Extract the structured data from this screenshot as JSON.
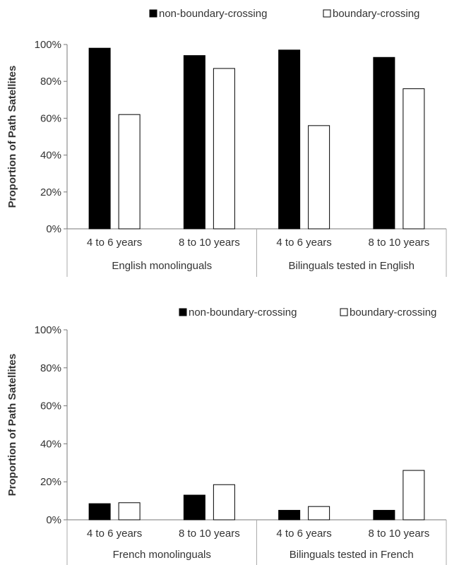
{
  "chart_data": [
    {
      "type": "bar",
      "ylabel": "Proportion of Path Satellites",
      "ylim": [
        0,
        100
      ],
      "yticks": [
        "0%",
        "20%",
        "40%",
        "60%",
        "80%",
        "100%"
      ],
      "groups": [
        "English monolinguals",
        "Bilinguals tested in English"
      ],
      "categories": [
        "4 to 6 years",
        "8 to 10 years",
        "4 to 6 years",
        "8 to 10 years"
      ],
      "legend_position": "top",
      "series": [
        {
          "name": "non-boundary-crossing",
          "color": "#000000",
          "values": [
            98,
            94,
            97,
            93
          ]
        },
        {
          "name": "boundary-crossing",
          "color": "#ffffff",
          "values": [
            62,
            87,
            56,
            76
          ]
        }
      ]
    },
    {
      "type": "bar",
      "ylabel": "Proportion of Path Satellites",
      "ylim": [
        0,
        100
      ],
      "yticks": [
        "0%",
        "20%",
        "40%",
        "60%",
        "80%",
        "100%"
      ],
      "groups": [
        "French monolinguals",
        "Bilinguals tested in French"
      ],
      "categories": [
        "4 to 6 years",
        "8 to 10 years",
        "4 to 6 years",
        "8 to 10 years"
      ],
      "legend_position": "top",
      "series": [
        {
          "name": "non-boundary-crossing",
          "color": "#000000",
          "values": [
            8.5,
            13,
            5,
            5
          ]
        },
        {
          "name": "boundary-crossing",
          "color": "#ffffff",
          "values": [
            9,
            18.5,
            7,
            26
          ]
        }
      ]
    }
  ]
}
